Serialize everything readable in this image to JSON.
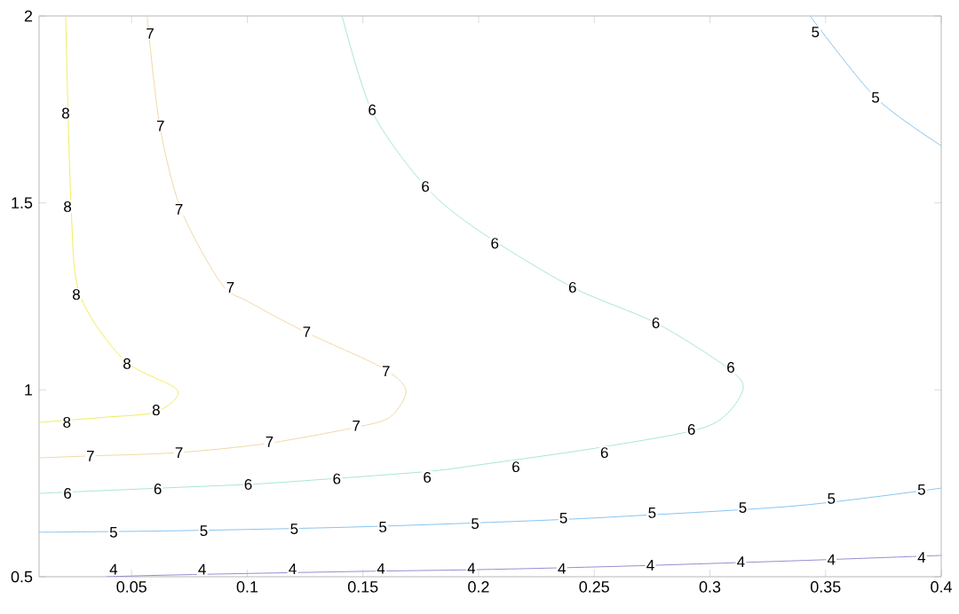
{
  "chart_data": {
    "type": "line",
    "xlim": [
      0.01,
      0.4
    ],
    "ylim": [
      0.5,
      2
    ],
    "xticks": [
      0.05,
      0.1,
      0.15,
      0.2,
      0.25,
      0.3,
      0.35,
      0.4
    ],
    "yticks": [
      0.5,
      1,
      1.5,
      2
    ],
    "grid": false,
    "line_style": "solid",
    "series": [
      {
        "color": "#f2ec5a",
        "x": [
          0.0215,
          0.0238,
          0.0276,
          0.0468,
          0.0698,
          0.0606,
          0.0391,
          0.01
        ],
        "values": [
          2,
          1.497,
          1.255,
          1.079,
          0.999,
          0.941,
          0.927,
          0.913
        ]
      },
      {
        "color": "#f0d8a8",
        "x": [
          0.0567,
          0.0621,
          0.0713,
          0.0889,
          0.1004,
          0.125,
          0.158,
          0.1686,
          0.1617,
          0.1464,
          0.108,
          0.0698,
          0.0315,
          0.01
        ],
        "values": [
          2,
          1.71,
          1.483,
          1.283,
          1.236,
          1.155,
          1.06,
          0.999,
          0.927,
          0.899,
          0.856,
          0.832,
          0.823,
          0.818
        ]
      },
      {
        "color": "#a8e6d4",
        "x": [
          0.141,
          0.154,
          0.177,
          0.2,
          0.2406,
          0.2766,
          0.3073,
          0.3142,
          0.2997,
          0.2536,
          0.2,
          0.177,
          0.125,
          0.1004,
          0.0621,
          0.01
        ],
        "values": [
          2,
          1.744,
          1.544,
          1.426,
          1.274,
          1.179,
          1.06,
          0.999,
          0.904,
          0.847,
          0.799,
          0.781,
          0.757,
          0.747,
          0.737,
          0.723
        ]
      },
      {
        "color": "#88c4f0",
        "x": [
          0.3433,
          0.3716,
          0.4
        ],
        "values": [
          2,
          1.782,
          1.653
        ]
      },
      {
        "color": "#88c4f0",
        "x": [
          0.01,
          0.0698,
          0.1464,
          0.22,
          0.2613,
          0.3379,
          0.4
        ],
        "values": [
          0.619,
          0.623,
          0.633,
          0.649,
          0.661,
          0.69,
          0.737
        ]
      },
      {
        "color": "#9a8cd0",
        "x": [
          0.039,
          0.0698,
          0.1464,
          0.2,
          0.2613,
          0.3379,
          0.4
        ],
        "values": [
          0.5,
          0.505,
          0.514,
          0.519,
          0.528,
          0.543,
          0.557
        ]
      }
    ],
    "annotations": [
      {
        "text": "8",
        "x": 0.0215,
        "y": 1.74
      },
      {
        "text": "8",
        "x": 0.0223,
        "y": 1.49
      },
      {
        "text": "8",
        "x": 0.0261,
        "y": 1.255
      },
      {
        "text": "8",
        "x": 0.048,
        "y": 1.07
      },
      {
        "text": "8",
        "x": 0.0606,
        "y": 0.946
      },
      {
        "text": "8",
        "x": 0.022,
        "y": 0.913
      },
      {
        "text": "7",
        "x": 0.058,
        "y": 1.953
      },
      {
        "text": "7",
        "x": 0.0625,
        "y": 1.706
      },
      {
        "text": "7",
        "x": 0.0705,
        "y": 1.483
      },
      {
        "text": "7",
        "x": 0.0927,
        "y": 1.274
      },
      {
        "text": "7",
        "x": 0.1257,
        "y": 1.155
      },
      {
        "text": "7",
        "x": 0.16,
        "y": 1.05
      },
      {
        "text": "7",
        "x": 0.1471,
        "y": 0.904
      },
      {
        "text": "7",
        "x": 0.1096,
        "y": 0.861
      },
      {
        "text": "7",
        "x": 0.0705,
        "y": 0.832
      },
      {
        "text": "7",
        "x": 0.0322,
        "y": 0.823
      },
      {
        "text": "6",
        "x": 0.154,
        "y": 1.749
      },
      {
        "text": "6",
        "x": 0.177,
        "y": 1.544
      },
      {
        "text": "6",
        "x": 0.207,
        "y": 1.392
      },
      {
        "text": "6",
        "x": 0.2406,
        "y": 1.274
      },
      {
        "text": "6",
        "x": 0.2766,
        "y": 1.179
      },
      {
        "text": "6",
        "x": 0.309,
        "y": 1.06
      },
      {
        "text": "6",
        "x": 0.292,
        "y": 0.894
      },
      {
        "text": "6",
        "x": 0.2544,
        "y": 0.832
      },
      {
        "text": "6",
        "x": 0.2161,
        "y": 0.794
      },
      {
        "text": "6",
        "x": 0.1778,
        "y": 0.766
      },
      {
        "text": "6",
        "x": 0.1387,
        "y": 0.762
      },
      {
        "text": "6",
        "x": 0.1004,
        "y": 0.747
      },
      {
        "text": "6",
        "x": 0.0613,
        "y": 0.735
      },
      {
        "text": "6",
        "x": 0.0223,
        "y": 0.723
      },
      {
        "text": "5",
        "x": 0.3456,
        "y": 1.957
      },
      {
        "text": "5",
        "x": 0.3716,
        "y": 1.782
      },
      {
        "text": "5",
        "x": 0.0422,
        "y": 0.619
      },
      {
        "text": "5",
        "x": 0.0812,
        "y": 0.623
      },
      {
        "text": "5",
        "x": 0.1203,
        "y": 0.628
      },
      {
        "text": "5",
        "x": 0.1586,
        "y": 0.633
      },
      {
        "text": "5",
        "x": 0.1985,
        "y": 0.642
      },
      {
        "text": "5",
        "x": 0.2367,
        "y": 0.657
      },
      {
        "text": "5",
        "x": 0.275,
        "y": 0.671
      },
      {
        "text": "5",
        "x": 0.3142,
        "y": 0.685
      },
      {
        "text": "5",
        "x": 0.3525,
        "y": 0.709
      },
      {
        "text": "5",
        "x": 0.3915,
        "y": 0.733
      },
      {
        "text": "4",
        "x": 0.0422,
        "y": 0.52
      },
      {
        "text": "4",
        "x": 0.0805,
        "y": 0.52
      },
      {
        "text": "4",
        "x": 0.1196,
        "y": 0.521
      },
      {
        "text": "4",
        "x": 0.1578,
        "y": 0.522
      },
      {
        "text": "4",
        "x": 0.1969,
        "y": 0.523
      },
      {
        "text": "4",
        "x": 0.236,
        "y": 0.522
      },
      {
        "text": "4",
        "x": 0.2743,
        "y": 0.531
      },
      {
        "text": "4",
        "x": 0.3134,
        "y": 0.54
      },
      {
        "text": "4",
        "x": 0.3525,
        "y": 0.546
      },
      {
        "text": "4",
        "x": 0.3915,
        "y": 0.552
      }
    ]
  }
}
